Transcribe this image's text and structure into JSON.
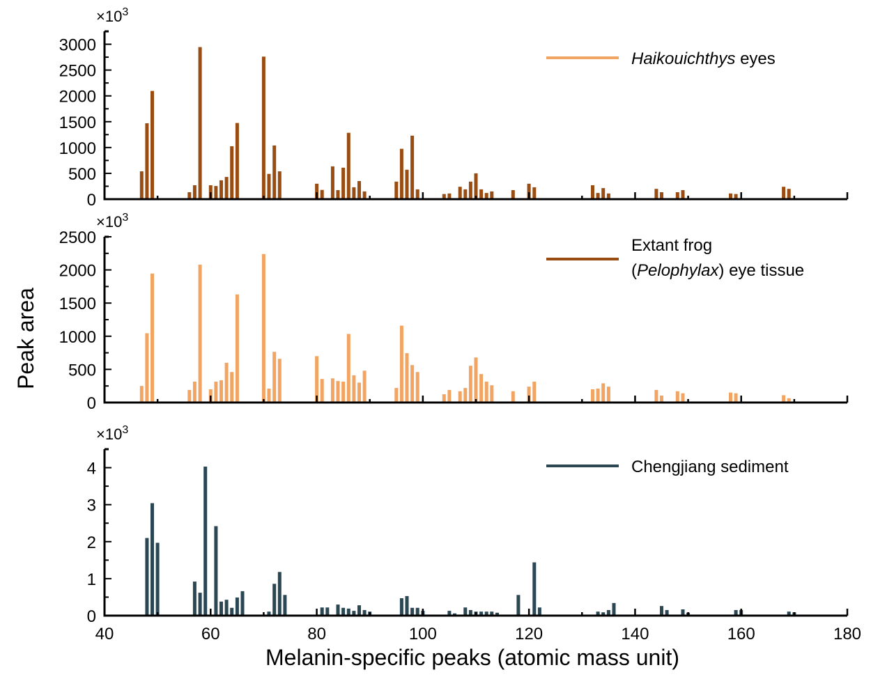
{
  "chart_data": {
    "type": "bar",
    "xlabel": "Melanin-specific peaks (atomic mass unit)",
    "ylabel": "Peak area",
    "xlim": [
      40,
      180
    ],
    "xticks": [
      40,
      60,
      80,
      100,
      120,
      140,
      160,
      180
    ],
    "x_minor_step": 10,
    "panels": [
      {
        "name": "haikouichthys",
        "multiplier_label": "×10",
        "multiplier_exp": "3",
        "ylim": [
          0,
          3250
        ],
        "yticks": [
          0,
          500,
          1000,
          1500,
          2000,
          2500,
          3000
        ],
        "y_minor_step": 250,
        "bar_color": "#9a4d12",
        "legend": {
          "color": "#f2a462",
          "text_italic": "Haikouichthys",
          "text_rest": " eyes",
          "line2_pre": "",
          "line2_italic": "",
          "line2_rest": "",
          "position": "top-right"
        },
        "x": [
          47,
          48,
          49,
          56,
          57,
          58,
          60,
          61,
          62,
          63,
          64,
          65,
          70,
          71,
          72,
          73,
          80,
          81,
          83,
          84,
          85,
          86,
          87,
          88,
          89,
          95,
          96,
          97,
          98,
          99,
          104,
          105,
          107,
          108,
          109,
          110,
          111,
          112,
          113,
          117,
          120,
          121,
          132,
          133,
          134,
          135,
          144,
          145,
          148,
          149,
          158,
          159,
          168,
          169
        ],
        "values": [
          540,
          1470,
          2095,
          135,
          270,
          2945,
          270,
          255,
          365,
          430,
          1025,
          1475,
          2760,
          490,
          1040,
          540,
          300,
          180,
          635,
          175,
          610,
          1285,
          230,
          350,
          150,
          340,
          975,
          570,
          1230,
          190,
          100,
          110,
          240,
          190,
          340,
          500,
          190,
          120,
          150,
          175,
          300,
          230,
          270,
          120,
          215,
          110,
          200,
          135,
          135,
          175,
          110,
          100,
          240,
          200
        ]
      },
      {
        "name": "pelophylax",
        "multiplier_label": "×10",
        "multiplier_exp": "3",
        "ylim": [
          0,
          2500
        ],
        "yticks": [
          0,
          500,
          1000,
          1500,
          2000,
          2500
        ],
        "y_minor_step": 250,
        "bar_color": "#f2a462",
        "legend": {
          "color": "#9a4d12",
          "text_italic": "",
          "text_rest": "Extant frog",
          "line2_pre": "(",
          "line2_italic": "Pelophylax",
          "line2_rest": ") eye tissue",
          "position": "top-right"
        },
        "x": [
          47,
          48,
          49,
          56,
          57,
          58,
          60,
          61,
          62,
          63,
          64,
          65,
          70,
          71,
          72,
          73,
          80,
          81,
          83,
          84,
          85,
          86,
          87,
          88,
          89,
          95,
          96,
          97,
          98,
          99,
          104,
          105,
          107,
          108,
          109,
          110,
          111,
          112,
          113,
          117,
          120,
          121,
          132,
          133,
          134,
          135,
          144,
          145,
          148,
          149,
          158,
          159,
          168,
          169
        ],
        "values": [
          250,
          1045,
          1945,
          190,
          315,
          2080,
          200,
          315,
          335,
          600,
          460,
          1630,
          2240,
          210,
          765,
          660,
          700,
          355,
          365,
          325,
          315,
          1035,
          410,
          300,
          480,
          220,
          1160,
          745,
          565,
          460,
          125,
          190,
          170,
          220,
          555,
          680,
          430,
          315,
          260,
          170,
          240,
          315,
          200,
          210,
          290,
          240,
          190,
          105,
          170,
          140,
          150,
          140,
          110,
          65
        ]
      },
      {
        "name": "chengjiang",
        "multiplier_label": "×10",
        "multiplier_exp": "3",
        "ylim": [
          0,
          4.5
        ],
        "yticks": [
          0,
          1,
          2,
          3,
          4
        ],
        "y_minor_step": 0.5,
        "bar_color": "#2b4754",
        "legend": {
          "color": "#2b4754",
          "text_italic": "",
          "text_rest": "Chengjiang sediment",
          "line2_pre": "",
          "line2_italic": "",
          "line2_rest": "",
          "position": "top-right"
        },
        "x": [
          48,
          49,
          50,
          57,
          58,
          59,
          61,
          62,
          63,
          64,
          65,
          66,
          71,
          72,
          73,
          74,
          81,
          82,
          84,
          85,
          86,
          87,
          88,
          89,
          90,
          96,
          97,
          98,
          99,
          100,
          105,
          106,
          108,
          109,
          110,
          111,
          112,
          113,
          114,
          118,
          121,
          122,
          133,
          134,
          135,
          136,
          145,
          146,
          149,
          150,
          159,
          160,
          169,
          170
        ],
        "values": [
          2.1,
          3.04,
          1.97,
          0.92,
          0.62,
          4.03,
          2.42,
          0.38,
          0.43,
          0.21,
          0.49,
          0.66,
          0.11,
          0.86,
          1.18,
          0.56,
          0.22,
          0.22,
          0.3,
          0.21,
          0.19,
          0.13,
          0.28,
          0.15,
          0.11,
          0.47,
          0.53,
          0.21,
          0.21,
          0.13,
          0.13,
          0.06,
          0.22,
          0.15,
          0.11,
          0.11,
          0.11,
          0.11,
          0.08,
          0.56,
          1.44,
          0.22,
          0.11,
          0.09,
          0.15,
          0.34,
          0.26,
          0.15,
          0.17,
          0.08,
          0.15,
          0.15,
          0.11,
          0.09
        ]
      }
    ]
  }
}
